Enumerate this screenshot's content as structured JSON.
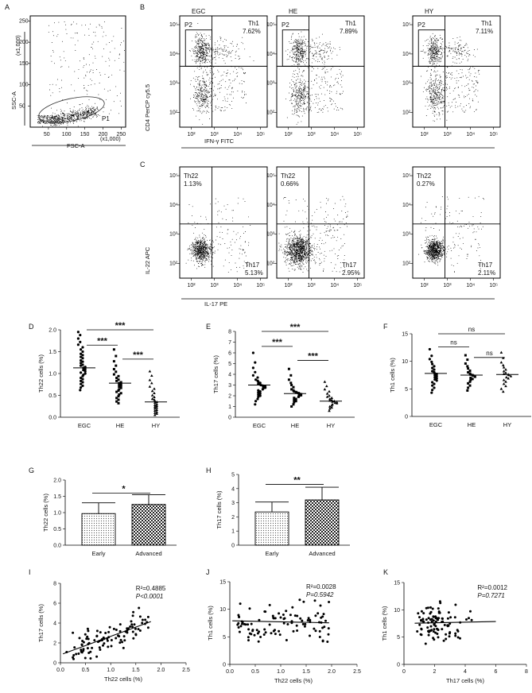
{
  "panel_labels": [
    "A",
    "B",
    "C",
    "D",
    "E",
    "F",
    "G",
    "H",
    "I",
    "J",
    "K"
  ],
  "chart_data": [
    {
      "panel": "A",
      "type": "scatter",
      "xlabel": "FSC-A",
      "ylabel": "SSC-A",
      "x_unit": "(x1,000)",
      "y_unit": "(x1,000)",
      "xticks": [
        "50",
        "100",
        "150",
        "200",
        "250"
      ],
      "yticks": [
        "50",
        "100",
        "150",
        "200",
        "250"
      ],
      "xlim": [
        0,
        262
      ],
      "ylim": [
        0,
        262
      ],
      "gate": "P1"
    },
    {
      "panel": "B",
      "type": "scatter",
      "xlabel": "IFN-γ FITC",
      "ylabel": "CD4 PerCP cy5.5",
      "xticks": [
        "10²",
        "10³",
        "10⁴",
        "10⁵"
      ],
      "yticks": [
        "10²",
        "10³",
        "10⁴",
        "10⁵"
      ],
      "xlim": [
        1.5,
        5.3
      ],
      "ylim": [
        1.5,
        5.3
      ],
      "gate_left": "P2",
      "gate_right": "Th1",
      "plots": [
        {
          "title": "EGC",
          "value": "7.62%"
        },
        {
          "title": "HE",
          "value": "7.89%"
        },
        {
          "title": "HY",
          "value": "7.11%"
        }
      ]
    },
    {
      "panel": "C",
      "type": "scatter",
      "xlabel": "IL-17 PE",
      "ylabel": "IL-22 APC",
      "xticks": [
        "10²",
        "10³",
        "10⁴",
        "10⁵"
      ],
      "yticks": [
        "10²",
        "10³",
        "10⁴",
        "10⁵"
      ],
      "xlim": [
        1.5,
        5.3
      ],
      "ylim": [
        1.5,
        5.3
      ],
      "gate_tl": "Th22",
      "gate_br": "Th17",
      "plots": [
        {
          "th22": "1.13%",
          "th17": "5.13%"
        },
        {
          "th22": "0.66%",
          "th17": "2.95%"
        },
        {
          "th22": "0.27%",
          "th17": "2.11%"
        }
      ]
    },
    {
      "panel": "D",
      "type": "scatter",
      "ylabel": "Th22 cells (%)",
      "categories": [
        "EGC",
        "HE",
        "HY"
      ],
      "ylim": [
        0,
        2.0
      ],
      "yticks": [
        "0.0",
        "0.5",
        "1.0",
        "1.5",
        "2.0"
      ],
      "yticks_at": [
        0,
        0.5,
        1.0,
        1.5,
        2.0
      ],
      "medians": [
        1.13,
        0.78,
        0.35
      ],
      "points": [
        [
          1.95,
          1.88,
          1.8,
          1.72,
          1.66,
          1.6,
          1.55,
          1.5,
          1.45,
          1.42,
          1.38,
          1.35,
          1.3,
          1.27,
          1.24,
          1.2,
          1.18,
          1.15,
          1.13,
          1.1,
          1.08,
          1.05,
          1.02,
          1.0,
          0.97,
          0.94,
          0.9,
          0.87,
          0.83,
          0.8,
          0.76,
          0.72,
          0.68,
          0.62
        ],
        [
          1.55,
          1.4,
          1.28,
          1.18,
          1.1,
          1.04,
          0.98,
          0.94,
          0.9,
          0.86,
          0.83,
          0.8,
          0.78,
          0.76,
          0.74,
          0.72,
          0.7,
          0.67,
          0.64,
          0.61,
          0.58,
          0.55,
          0.52,
          0.48,
          0.44,
          0.4,
          0.36,
          0.32
        ],
        [
          1.05,
          0.95,
          0.85,
          0.78,
          0.7,
          0.65,
          0.6,
          0.55,
          0.5,
          0.46,
          0.42,
          0.4,
          0.37,
          0.35,
          0.33,
          0.3,
          0.28,
          0.26,
          0.24,
          0.22,
          0.2,
          0.17,
          0.15,
          0.12,
          0.1,
          0.08,
          0.05
        ]
      ],
      "markers": [
        "circle",
        "square",
        "triangle"
      ],
      "comparisons": [
        {
          "from": 0,
          "to": 1,
          "level": 1.65,
          "label": "***"
        },
        {
          "from": 0,
          "to": 2,
          "level": 2.0,
          "label": "***"
        },
        {
          "from": 1,
          "to": 2,
          "level": 1.33,
          "label": "***"
        }
      ]
    },
    {
      "panel": "E",
      "type": "scatter",
      "ylabel": "Th17 cells (%)",
      "categories": [
        "EGC",
        "HE",
        "HY"
      ],
      "ylim": [
        0,
        8
      ],
      "yticks": [
        "0",
        "1",
        "2",
        "3",
        "4",
        "5",
        "6",
        "7",
        "8"
      ],
      "yticks_at": [
        0,
        1,
        2,
        3,
        4,
        5,
        6,
        7,
        8
      ],
      "medians": [
        3.0,
        2.2,
        1.5
      ],
      "points": [
        [
          6.0,
          5.1,
          4.6,
          4.2,
          3.9,
          3.7,
          3.5,
          3.4,
          3.3,
          3.2,
          3.1,
          3.05,
          3.0,
          2.95,
          2.9,
          2.85,
          2.8,
          2.75,
          2.7,
          2.6,
          2.5,
          2.4,
          2.3,
          2.2,
          2.1,
          2.0,
          1.9,
          1.7,
          1.5,
          1.2
        ],
        [
          4.5,
          3.9,
          3.5,
          3.2,
          3.0,
          2.8,
          2.6,
          2.5,
          2.4,
          2.35,
          2.3,
          2.25,
          2.2,
          2.15,
          2.1,
          2.05,
          2.0,
          1.9,
          1.8,
          1.7,
          1.6,
          1.5,
          1.4,
          1.2,
          1.0
        ],
        [
          3.3,
          2.9,
          2.6,
          2.4,
          2.2,
          2.0,
          1.9,
          1.8,
          1.7,
          1.6,
          1.55,
          1.5,
          1.45,
          1.4,
          1.35,
          1.3,
          1.2,
          1.1,
          1.0,
          0.9,
          0.8,
          0.6
        ]
      ],
      "markers": [
        "circle",
        "square",
        "triangle"
      ],
      "comparisons": [
        {
          "from": 0,
          "to": 1,
          "level": 6.6,
          "label": "***"
        },
        {
          "from": 0,
          "to": 2,
          "level": 8.0,
          "label": "***"
        },
        {
          "from": 1,
          "to": 2,
          "level": 5.3,
          "label": "***"
        }
      ]
    },
    {
      "panel": "F",
      "type": "scatter",
      "ylabel": "Th1 cells (%)",
      "categories": [
        "EGC",
        "HE",
        "HY"
      ],
      "ylim": [
        0,
        15
      ],
      "yticks": [
        "0",
        "5",
        "10",
        "15"
      ],
      "yticks_at": [
        0,
        5,
        10,
        15
      ],
      "medians": [
        7.8,
        7.5,
        7.6
      ],
      "points": [
        [
          12.2,
          11.0,
          10.4,
          9.9,
          9.5,
          9.1,
          8.8,
          8.5,
          8.2,
          8.0,
          7.8,
          7.7,
          7.5,
          7.3,
          7.1,
          6.9,
          6.7,
          6.5,
          6.2,
          5.9,
          5.6,
          5.2,
          4.8,
          4.3
        ],
        [
          11.1,
          10.3,
          9.6,
          9.1,
          8.7,
          8.3,
          8.0,
          7.8,
          7.6,
          7.5,
          7.4,
          7.2,
          7.0,
          6.8,
          6.6,
          6.3,
          6.0,
          5.6,
          5.2,
          4.7
        ],
        [
          11.6,
          10.6,
          9.8,
          9.3,
          8.9,
          8.5,
          8.2,
          7.9,
          7.7,
          7.6,
          7.5,
          7.3,
          7.1,
          6.9,
          6.6,
          6.3,
          5.9,
          5.5,
          5.0,
          4.5
        ]
      ],
      "markers": [
        "circle",
        "square",
        "triangle"
      ],
      "comparisons": [
        {
          "from": 0,
          "to": 1,
          "level": 12.6,
          "label": "ns"
        },
        {
          "from": 0,
          "to": 2,
          "level": 15.0,
          "label": "ns"
        },
        {
          "from": 1,
          "to": 2,
          "level": 10.7,
          "label": "ns"
        }
      ]
    },
    {
      "panel": "G",
      "type": "bar",
      "ylabel": "Th22 cells (%)",
      "categories": [
        "Early",
        "Advanced"
      ],
      "values": [
        0.97,
        1.25
      ],
      "errors": [
        0.33,
        0.3
      ],
      "ylim": [
        0,
        2.0
      ],
      "yticks": [
        "0.0",
        "0.5",
        "1.0",
        "1.5",
        "2.0"
      ],
      "yticks_at": [
        0,
        0.5,
        1.0,
        1.5,
        2.0
      ],
      "comparison": {
        "level": 1.6,
        "label": "*"
      },
      "fills": [
        "dots",
        "checker"
      ]
    },
    {
      "panel": "H",
      "type": "bar",
      "ylabel": "Th17 cells (%)",
      "categories": [
        "Early",
        "Advanced"
      ],
      "values": [
        2.35,
        3.2
      ],
      "errors": [
        0.7,
        0.9
      ],
      "ylim": [
        0,
        5
      ],
      "yticks": [
        "0",
        "1",
        "2",
        "3",
        "4",
        "5"
      ],
      "yticks_at": [
        0,
        1,
        2,
        3,
        4,
        5
      ],
      "comparison": {
        "level": 4.3,
        "label": "**"
      },
      "fills": [
        "dots",
        "checker"
      ]
    },
    {
      "panel": "I",
      "type": "scatter",
      "xlabel": "Th22 cells (%)",
      "ylabel": "Th17 cells (%)",
      "xlim": [
        0,
        2.5
      ],
      "ylim": [
        0,
        8
      ],
      "xticks": [
        "0.0",
        "0.5",
        "1.0",
        "1.5",
        "2.0",
        "2.5"
      ],
      "xticks_at": [
        0,
        0.5,
        1.0,
        1.5,
        2.0,
        2.5
      ],
      "yticks": [
        "0",
        "2",
        "4",
        "6",
        "8"
      ],
      "yticks_at": [
        0,
        2,
        4,
        6,
        8
      ],
      "r2": "R²=0.4885",
      "p": "P<0.0001",
      "fit": [
        [
          0.05,
          0.9
        ],
        [
          1.8,
          4.15
        ]
      ],
      "n": 100,
      "seed": 11,
      "trend": "positive"
    },
    {
      "panel": "J",
      "type": "scatter",
      "xlabel": "Th22 cells (%)",
      "ylabel": "Th1 cells (%)",
      "xlim": [
        0,
        2.5
      ],
      "ylim": [
        0,
        15
      ],
      "xticks": [
        "0.0",
        "0.5",
        "1.0",
        "1.5",
        "2.0",
        "2.5"
      ],
      "xticks_at": [
        0,
        0.5,
        1.0,
        1.5,
        2.0,
        2.5
      ],
      "yticks": [
        "0",
        "5",
        "10",
        "15"
      ],
      "yticks_at": [
        0,
        5,
        10,
        15
      ],
      "r2": "R²=0.0028",
      "p": "P=0.5942",
      "fit": [
        [
          0.05,
          7.9
        ],
        [
          1.95,
          7.55
        ]
      ],
      "n": 100,
      "seed": 23,
      "trend": "flat"
    },
    {
      "panel": "K",
      "type": "scatter",
      "xlabel": "Th17 cells (%)",
      "ylabel": "Th1 cells (%)",
      "xlim": [
        0,
        8
      ],
      "ylim": [
        0,
        15
      ],
      "xticks": [
        "0",
        "2",
        "4",
        "6",
        "8"
      ],
      "xticks_at": [
        0,
        2,
        4,
        6,
        8
      ],
      "yticks": [
        "0",
        "5",
        "10",
        "15"
      ],
      "yticks_at": [
        0,
        5,
        10,
        15
      ],
      "r2": "R²=0.0012",
      "p": "P=0.7271",
      "fit": [
        [
          0.7,
          7.55
        ],
        [
          6.0,
          7.85
        ]
      ],
      "n": 100,
      "seed": 37,
      "trend": "flat2"
    }
  ]
}
